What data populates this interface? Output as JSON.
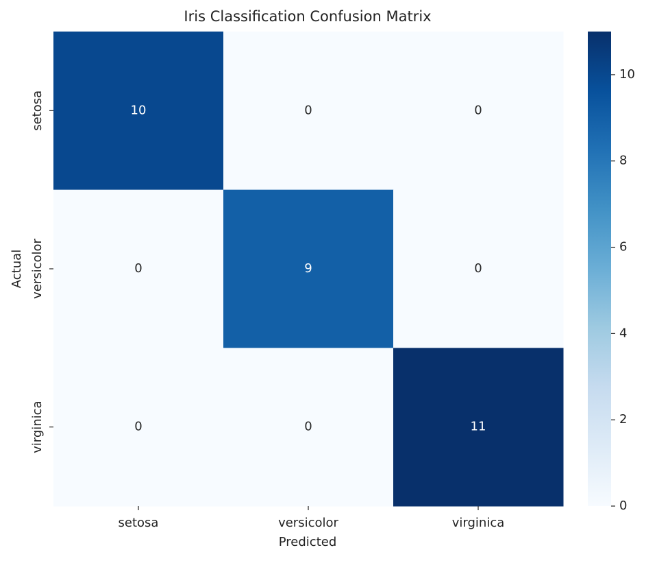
{
  "chart_data": {
    "type": "heatmap",
    "title": "Iris Classification Confusion Matrix",
    "x_label": "Predicted",
    "y_label": "Actual",
    "x_categories": [
      "setosa",
      "versicolor",
      "virginica"
    ],
    "y_categories": [
      "setosa",
      "versicolor",
      "virginica"
    ],
    "values": [
      [
        10,
        0,
        0
      ],
      [
        0,
        9,
        0
      ],
      [
        0,
        0,
        11
      ]
    ],
    "colormap": "Blues",
    "clim": [
      0,
      11
    ],
    "cticks": [
      0,
      2,
      4,
      6,
      8,
      10
    ]
  }
}
